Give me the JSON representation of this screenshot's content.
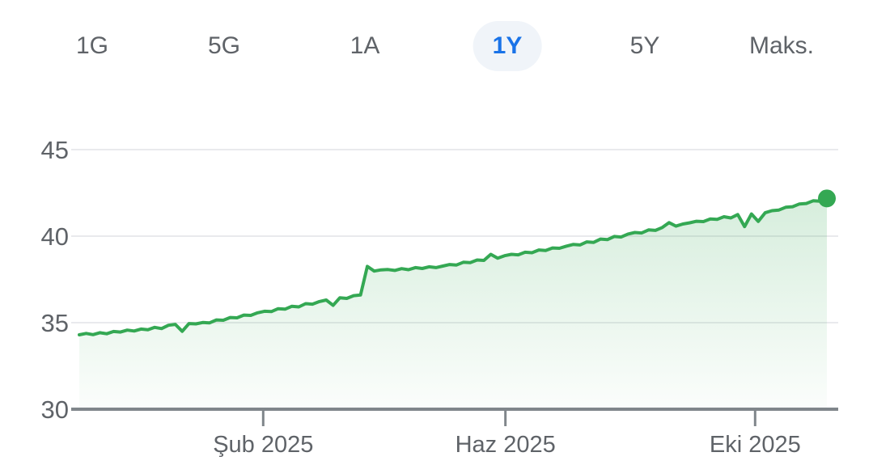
{
  "tabs": {
    "items": [
      {
        "label": "1G",
        "active": false
      },
      {
        "label": "5G",
        "active": false
      },
      {
        "label": "1A",
        "active": false
      },
      {
        "label": "1Y",
        "active": true
      },
      {
        "label": "5Y",
        "active": false
      },
      {
        "label": "Maks.",
        "active": false
      }
    ]
  },
  "colors": {
    "line_green": "#34a853",
    "endpoint_dot": "#34a853",
    "fill_top": "rgba(52,168,83,0.20)",
    "fill_bottom": "rgba(52,168,83,0.02)",
    "grid": "#e9eaed",
    "axis_baseline": "#80868b",
    "tick_label": "#5f6368",
    "tab_inactive": "#5f6368",
    "tab_active": "#1a73e8",
    "tab_active_bg": "#f0f4f9",
    "background": "#ffffff"
  },
  "chart_data": {
    "type": "area",
    "selected_range": "1Y",
    "ylim": [
      30,
      45
    ],
    "y_ticks": [
      45,
      40,
      35,
      30
    ],
    "x_ticks": [
      {
        "label": "Şub 2025",
        "pos": 0.246
      },
      {
        "label": "Haz 2025",
        "pos": 0.57
      },
      {
        "label": "Eki 2025",
        "pos": 0.904
      }
    ],
    "grid": true,
    "endpoint_marker": true,
    "start_value": 34.3,
    "end_value": 42.2,
    "values": [
      34.3,
      34.38,
      34.31,
      34.42,
      34.36,
      34.49,
      34.46,
      34.57,
      34.52,
      34.63,
      34.59,
      34.73,
      34.66,
      34.85,
      34.9,
      34.5,
      34.95,
      34.93,
      35.01,
      34.99,
      35.16,
      35.14,
      35.3,
      35.28,
      35.44,
      35.42,
      35.57,
      35.66,
      35.64,
      35.81,
      35.78,
      35.95,
      35.91,
      36.1,
      36.07,
      36.22,
      36.31,
      36.0,
      36.44,
      36.4,
      36.56,
      36.6,
      38.25,
      37.98,
      38.05,
      38.07,
      38.02,
      38.12,
      38.06,
      38.18,
      38.13,
      38.23,
      38.18,
      38.27,
      38.36,
      38.33,
      38.49,
      38.47,
      38.62,
      38.6,
      38.95,
      38.73,
      38.87,
      38.95,
      38.92,
      39.07,
      39.04,
      39.2,
      39.17,
      39.32,
      39.3,
      39.42,
      39.52,
      39.49,
      39.67,
      39.64,
      39.83,
      39.8,
      39.98,
      39.95,
      40.12,
      40.21,
      40.18,
      40.36,
      40.33,
      40.5,
      40.78,
      40.58,
      40.7,
      40.77,
      40.86,
      40.84,
      40.99,
      40.97,
      41.12,
      41.05,
      41.25,
      40.55,
      41.28,
      40.85,
      41.35,
      41.47,
      41.51,
      41.67,
      41.7,
      41.86,
      41.89,
      42.04,
      42.02,
      42.18
    ]
  }
}
